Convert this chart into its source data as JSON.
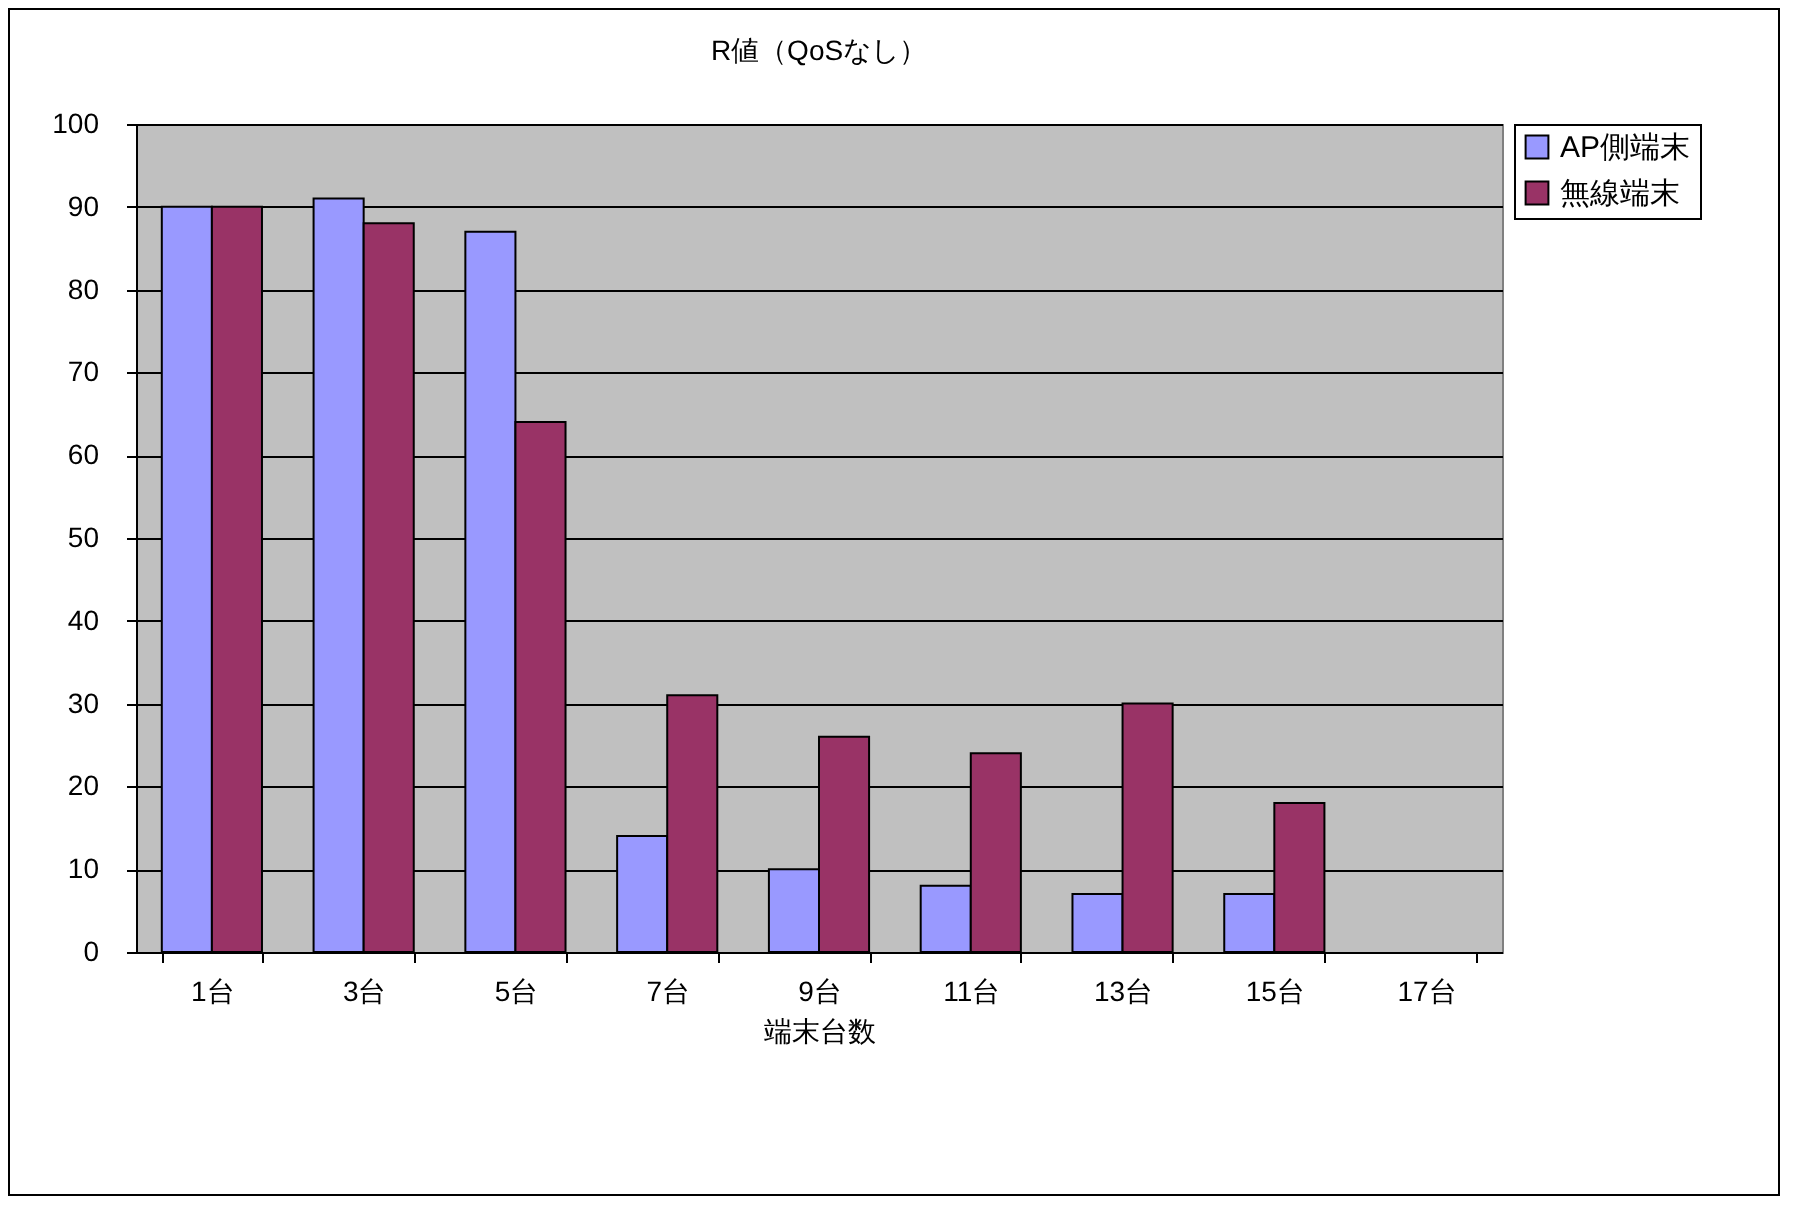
{
  "chart_data": {
    "type": "bar",
    "title": "R値（QoSなし）",
    "xlabel": "端末台数",
    "categories": [
      "1台",
      "3台",
      "5台",
      "7台",
      "9台",
      "11台",
      "13台",
      "15台",
      "17台"
    ],
    "series": [
      {
        "name": "AP側端末",
        "color": "#9999ff",
        "values": [
          90,
          91,
          87,
          14,
          10,
          8,
          7,
          7,
          null
        ]
      },
      {
        "name": "無線端末",
        "color": "#993366",
        "values": [
          90,
          88,
          64,
          31,
          26,
          24,
          30,
          18,
          null
        ]
      }
    ],
    "ylim": [
      0,
      100
    ],
    "yticks": [
      0,
      10,
      20,
      30,
      40,
      50,
      60,
      70,
      80,
      90,
      100
    ],
    "grid": "y",
    "legend": "right"
  }
}
